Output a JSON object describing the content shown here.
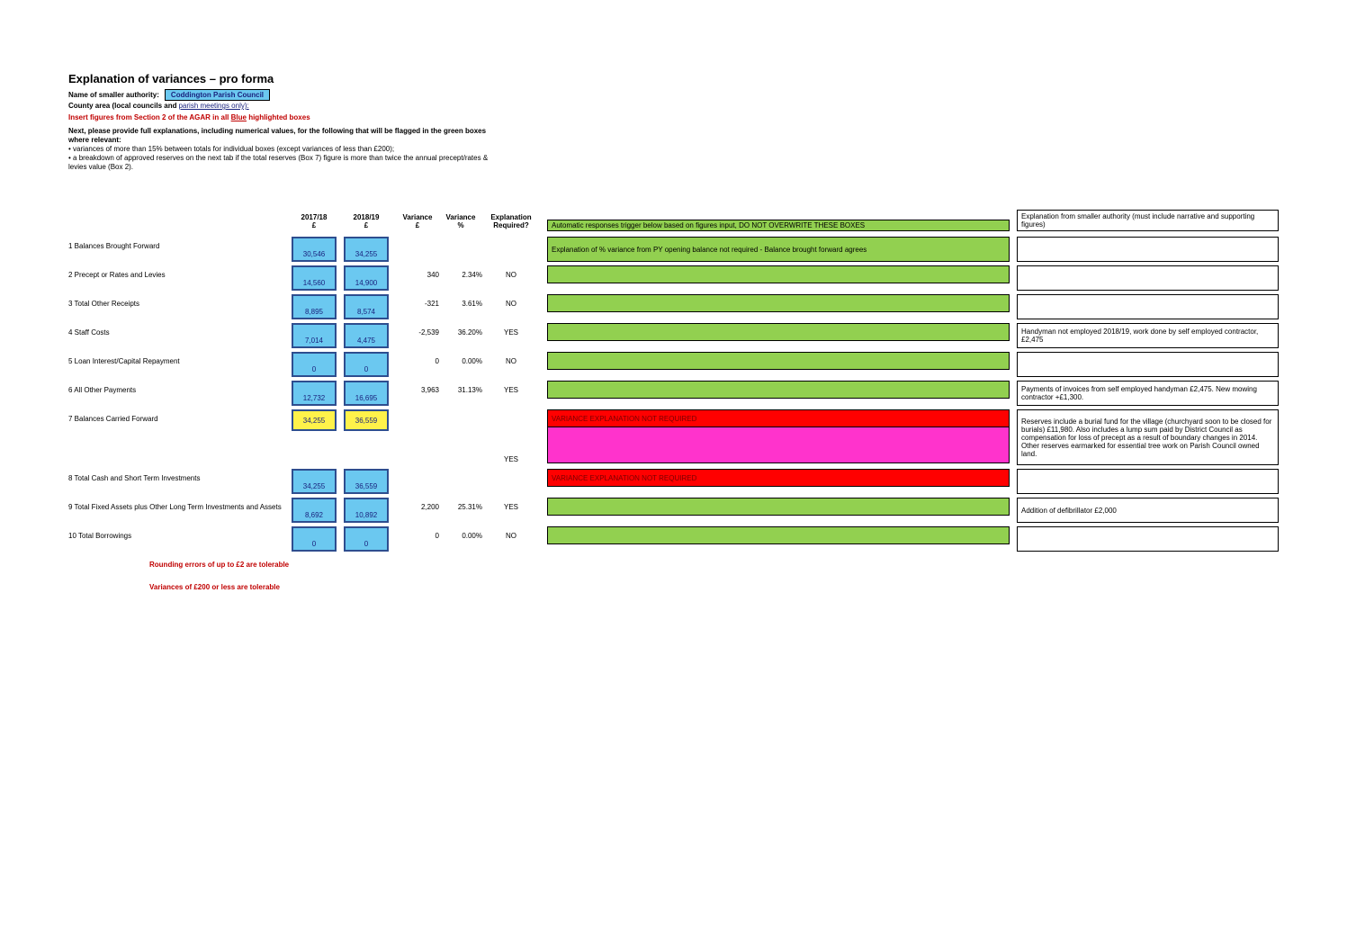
{
  "title": "Explanation of variances – pro forma",
  "header": {
    "authority_label": "Name of smaller authority:",
    "authority_name": "Coddington Parish Council",
    "county_label": "County area (local councils and",
    "meeting_link": "parish meetings only):",
    "insert_instruction_prefix": "Insert figures from Section 2 of the AGAR in all ",
    "insert_instruction_mid": "Blue",
    "insert_instruction_suffix": " highlighted boxes",
    "instr_1": "Next, please provide full explanations, including numerical values, for the following that will be flagged in the green boxes where relevant:",
    "instr_2": "• variances of more than 15% between totals for individual boxes (except variances of less than £200);",
    "instr_3": "• a breakdown of approved reserves on the next tab if the total reserves (Box 7) figure is more than twice the annual precept/rates & levies value (Box 2)."
  },
  "columns": {
    "y1": "2017/18",
    "y2": "2018/19",
    "unit": "£",
    "var": "Variance",
    "pct": "Variance",
    "pct_unit": "%",
    "req": "Explanation Required?",
    "auto_hdr": "Automatic responses trigger below based on figures input, DO NOT OVERWRITE THESE BOXES",
    "expl_hdr": "Explanation from smaller authority (must include narrative and supporting figures)"
  },
  "rows": [
    {
      "n": "1",
      "label": "Balances Brought Forward",
      "y1": "30,546",
      "y2": "34,255",
      "var": "",
      "pct": "",
      "req": "",
      "auto": "Explanation of % variance from PY opening balance not required - Balance brought forward agrees",
      "expl": "",
      "auto_bg": "green",
      "y_style": "blue"
    },
    {
      "n": "2",
      "label": "Precept or Rates and Levies",
      "y1": "14,560",
      "y2": "14,900",
      "var": "340",
      "pct": "2.34%",
      "req": "NO",
      "auto": "",
      "expl": "",
      "auto_bg": "green",
      "y_style": "blue"
    },
    {
      "n": "3",
      "label": "Total Other Receipts",
      "y1": "8,895",
      "y2": "8,574",
      "var": "-321",
      "pct": "3.61%",
      "req": "NO",
      "auto": "",
      "expl": "",
      "auto_bg": "green",
      "y_style": "blue"
    },
    {
      "n": "4",
      "label": "Staff Costs",
      "y1": "7,014",
      "y2": "4,475",
      "var": "-2,539",
      "pct": "36.20%",
      "req": "YES",
      "auto": "",
      "expl": "Handyman not employed 2018/19, work done by self employed contractor, £2,475",
      "auto_bg": "green",
      "y_style": "blue"
    },
    {
      "n": "5",
      "label": "Loan Interest/Capital Repayment",
      "y1": "0",
      "y2": "0",
      "var": "0",
      "pct": "0.00%",
      "req": "NO",
      "auto": "",
      "expl": "",
      "auto_bg": "green",
      "y_style": "blue"
    },
    {
      "n": "6",
      "label": "All Other Payments",
      "y1": "12,732",
      "y2": "16,695",
      "var": "3,963",
      "pct": "31.13%",
      "req": "YES",
      "auto": "",
      "expl": "Payments of invoices from self employed handyman £2,475. New mowing contractor +£1,300.",
      "auto_bg": "green",
      "y_style": "blue"
    },
    {
      "n": "7",
      "label": "Balances Carried Forward",
      "y1": "34,255",
      "y2": "36,559",
      "var": "",
      "pct": "",
      "req": "YES",
      "auto": "VARIANCE EXPLANATION NOT REQUIRED",
      "expl": "Reserves include a burial fund for the village (churchyard soon to be closed for burials) £11,980. Also includes a lump sum paid by District Council as compensation for loss of precept as a result of boundary changes in 2014. Other reserves earmarked for essential tree work on Parish Council owned land.",
      "auto_bg": "red",
      "y_style": "yellow",
      "tall": true
    },
    {
      "n": "8",
      "label": "Total Cash and Short Term Investments",
      "y1": "34,255",
      "y2": "36,559",
      "var": "",
      "pct": "",
      "req": "",
      "auto": "VARIANCE EXPLANATION NOT REQUIRED",
      "expl": "",
      "auto_bg": "red",
      "y_style": "blue"
    },
    {
      "n": "9",
      "label": "Total Fixed Assets plus Other Long Term Investments and Assets",
      "y1": "8,692",
      "y2": "10,892",
      "var": "2,200",
      "pct": "25.31%",
      "req": "YES",
      "auto": "",
      "expl": "Addition of defibrillator £2,000",
      "auto_bg": "green",
      "y_style": "blue"
    },
    {
      "n": "10",
      "label": "Total Borrowings",
      "y1": "0",
      "y2": "0",
      "var": "0",
      "pct": "0.00%",
      "req": "NO",
      "auto": "",
      "expl": "",
      "auto_bg": "green",
      "y_style": "blue"
    }
  ],
  "footer": {
    "note1": "Rounding errors of up to £2 are tolerable",
    "note2": "Variances of £200 or less are tolerable"
  },
  "colors": {
    "blue_fill": "#6bc8f0",
    "blue_border": "#2e4e8f",
    "yellow_fill": "#fff24a",
    "green_fill": "#92d050",
    "red_fill": "#ff0000",
    "magenta_fill": "#ff33cc",
    "red_text": "#c00000"
  }
}
